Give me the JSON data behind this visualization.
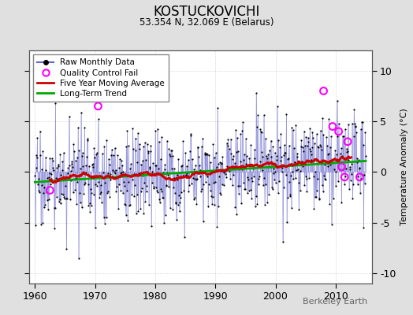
{
  "title": "KOSTUCKOVICHI",
  "subtitle": "53.354 N, 32.069 E (Belarus)",
  "ylabel": "Temperature Anomaly (°C)",
  "watermark": "Berkeley Earth",
  "xlim": [
    1959,
    2016
  ],
  "ylim": [
    -11,
    12
  ],
  "yticks": [
    -10,
    -5,
    0,
    5,
    10
  ],
  "xticks": [
    1960,
    1970,
    1980,
    1990,
    2000,
    2010
  ],
  "bg_color": "#e0e0e0",
  "plot_bg_color": "#ffffff",
  "raw_line_color": "#6666cc",
  "raw_dot_color": "#000000",
  "ma_color": "#cc0000",
  "trend_color": "#00aa00",
  "qc_color": "#ff00ff",
  "trend_slope": 0.038,
  "trend_intercept": -1.0,
  "years_start": 1960,
  "years_end": 2015,
  "noise_std": 2.3,
  "seed": 17,
  "qc_times": [
    1962.5,
    1970.5,
    2008.0,
    2009.5,
    2010.5,
    2011.0,
    2011.5,
    2012.0,
    2014.0
  ],
  "qc_vals": [
    -1.8,
    6.5,
    8.0,
    4.5,
    4.0,
    0.5,
    -0.5,
    3.0,
    -0.5
  ]
}
